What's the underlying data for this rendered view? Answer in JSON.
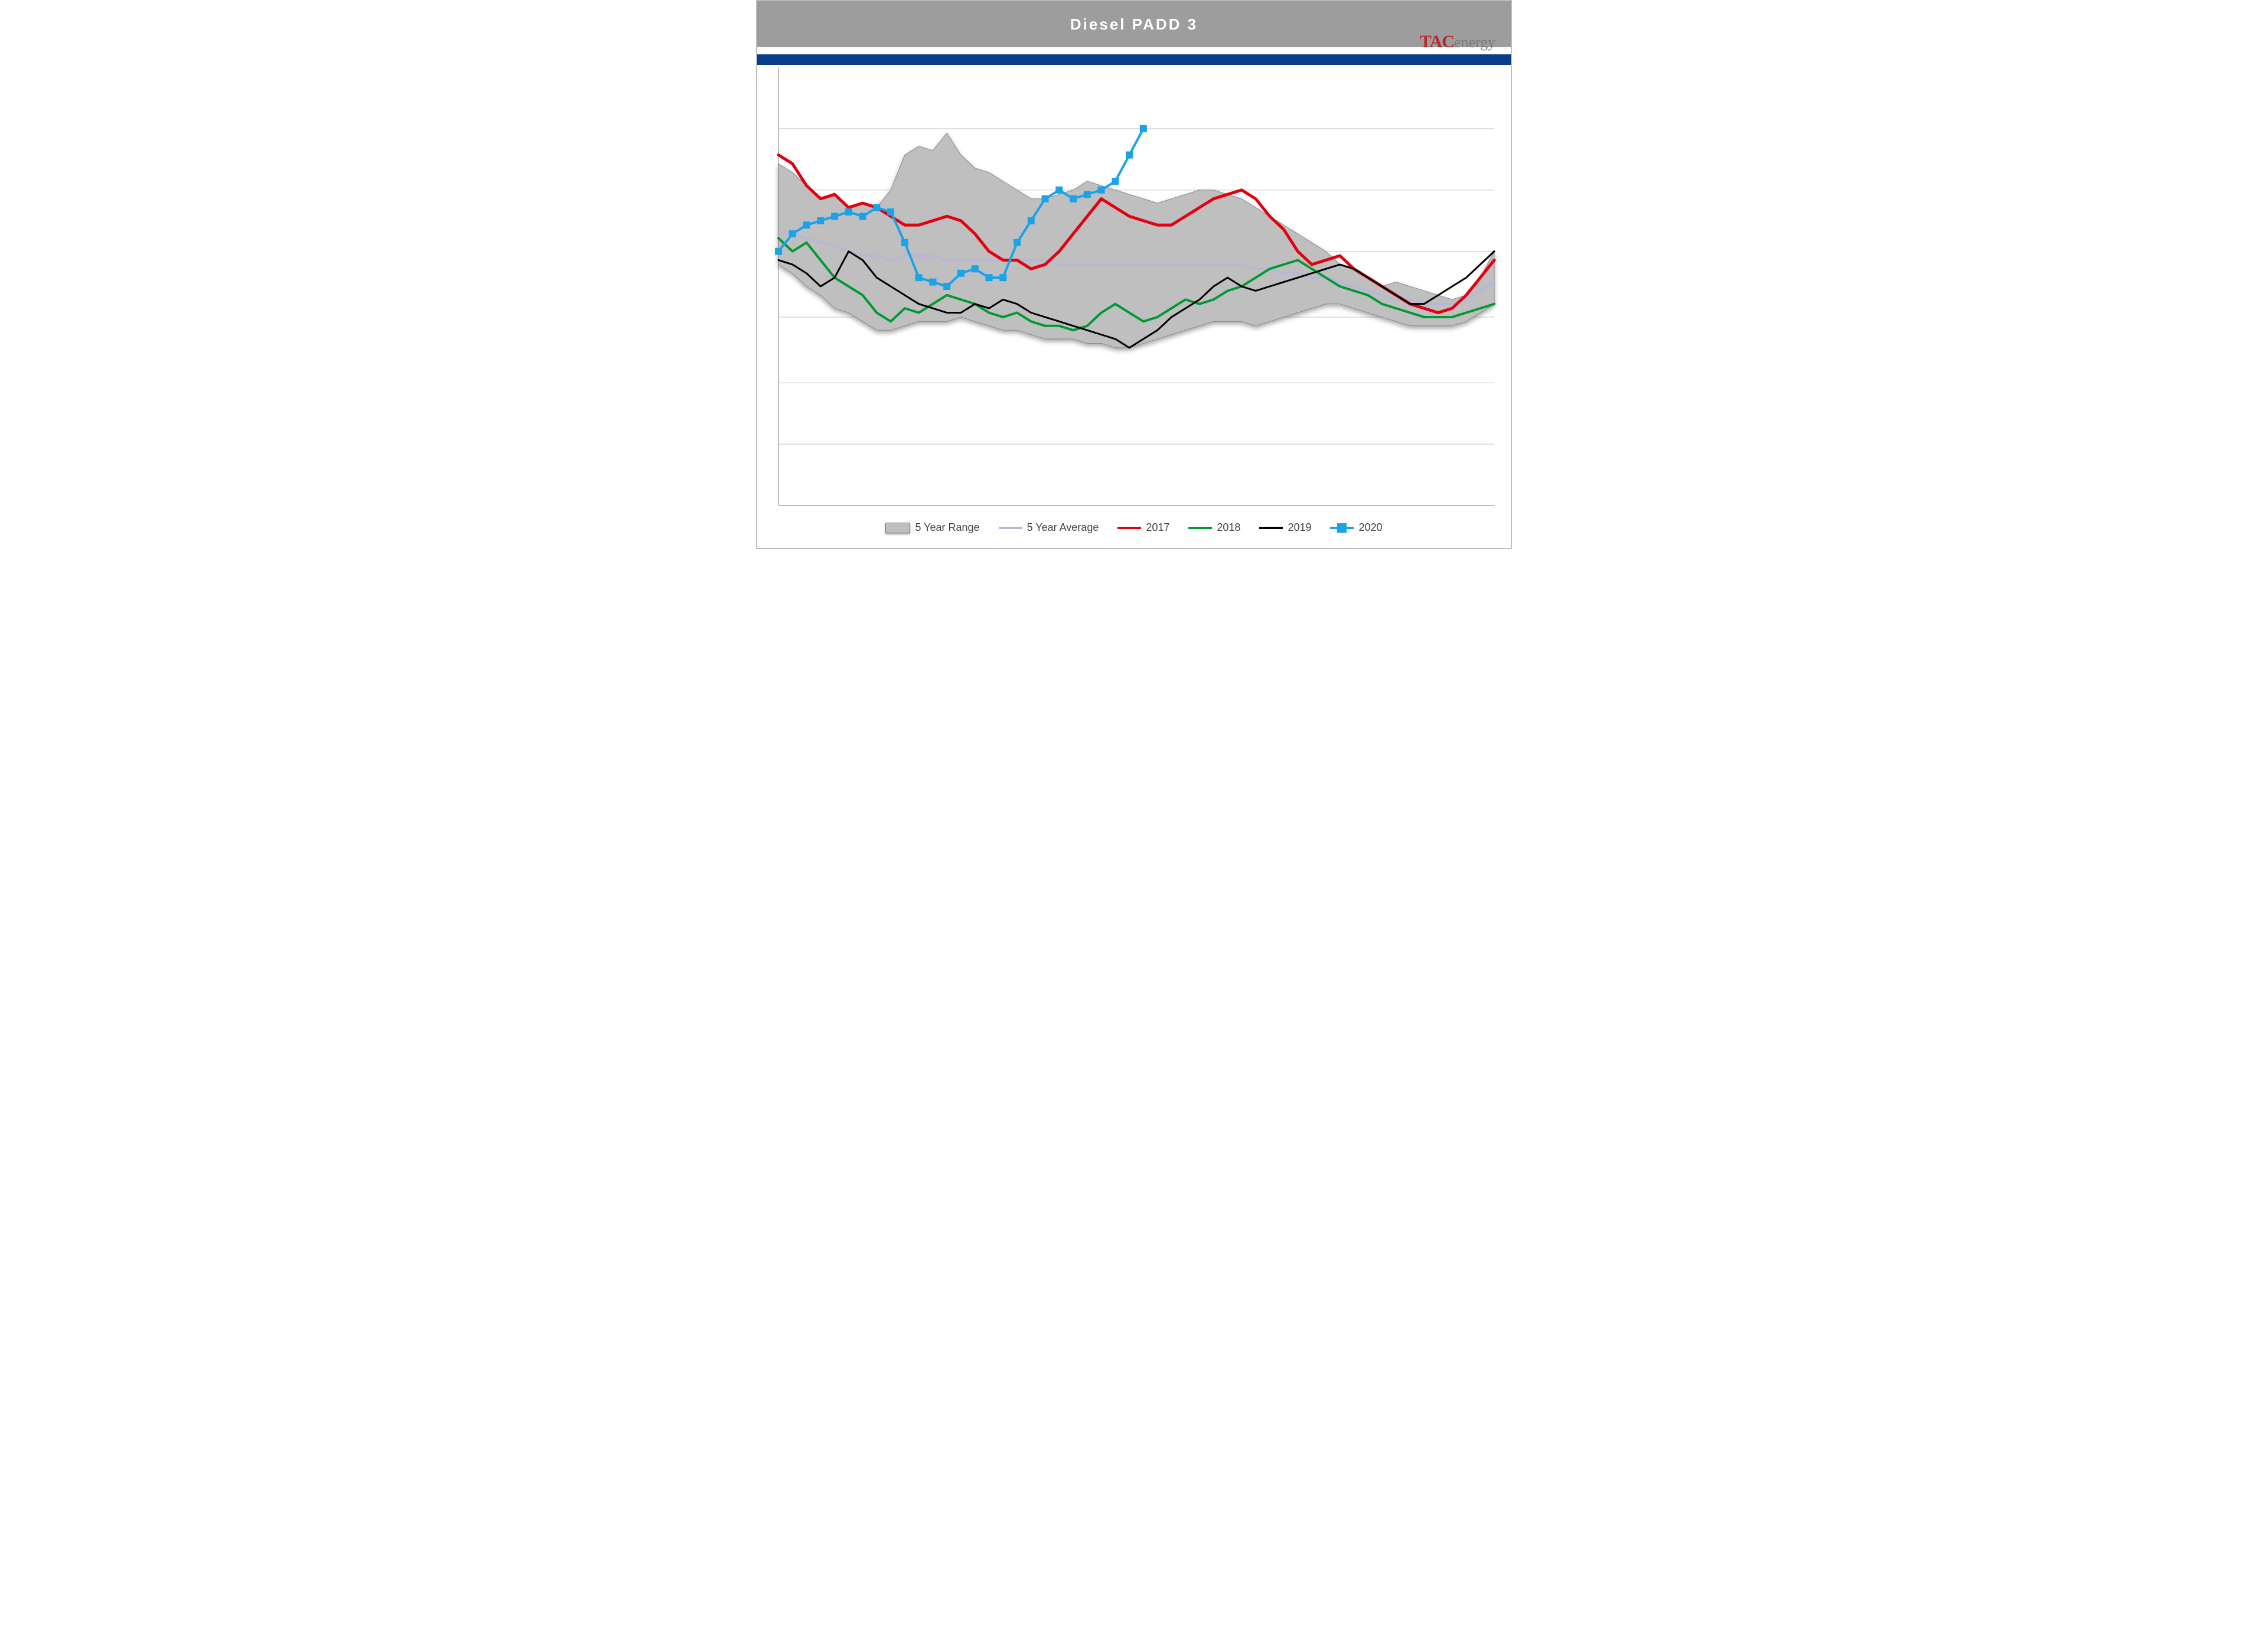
{
  "title": "Diesel  PADD  3",
  "logo": {
    "part1": "TAC",
    "part2": "energy"
  },
  "chart": {
    "type": "line+area",
    "background_color": "#ffffff",
    "grid_color": "#d9d9d9",
    "axis_color": "#000000",
    "x": {
      "count": 52,
      "min": 1,
      "max": 52
    },
    "y": {
      "min": 0,
      "max": 100,
      "gridlines": [
        14,
        28,
        43,
        58,
        72,
        86
      ]
    },
    "range": {
      "label": "5 Year Range",
      "fill": "#bfbfbf",
      "stroke": "#8a8a8a",
      "high": [
        78,
        76,
        73,
        70,
        71,
        68,
        69,
        68,
        72,
        80,
        82,
        81,
        85,
        80,
        77,
        76,
        74,
        72,
        70,
        70,
        71,
        72,
        74,
        73,
        72,
        71,
        70,
        69,
        70,
        71,
        72,
        72,
        71,
        70,
        68,
        66,
        64,
        62,
        60,
        58,
        55,
        54,
        52,
        50,
        51,
        50,
        49,
        48,
        47,
        48,
        52,
        58
      ],
      "low": [
        55,
        53,
        50,
        48,
        45,
        44,
        42,
        40,
        40,
        41,
        42,
        42,
        42,
        43,
        42,
        41,
        40,
        40,
        39,
        38,
        38,
        38,
        37,
        37,
        36,
        36,
        37,
        38,
        39,
        40,
        41,
        42,
        42,
        42,
        41,
        42,
        43,
        44,
        45,
        46,
        46,
        45,
        44,
        43,
        42,
        41,
        41,
        41,
        41,
        42,
        44,
        46
      ]
    },
    "avg": {
      "label": "5 Year Average",
      "color": "#b7b7d8",
      "width": 4,
      "values": [
        62,
        62,
        61,
        60,
        59,
        58,
        57,
        57,
        56,
        57,
        57,
        57,
        56,
        56,
        56,
        56,
        56,
        56,
        56,
        56,
        55,
        55,
        55,
        55,
        55,
        55,
        55,
        55,
        55,
        55,
        55,
        55,
        55,
        55,
        54,
        54,
        53,
        53,
        52,
        52,
        51,
        50,
        49,
        48,
        47,
        47,
        46,
        46,
        46,
        47,
        49,
        51
      ]
    },
    "series": [
      {
        "key": "s2017",
        "label": "2017",
        "color": "#e3000f",
        "width": 5,
        "values": [
          80,
          78,
          73,
          70,
          71,
          68,
          69,
          68,
          66,
          64,
          64,
          65,
          66,
          65,
          62,
          58,
          56,
          56,
          54,
          55,
          58,
          62,
          66,
          70,
          68,
          66,
          65,
          64,
          64,
          66,
          68,
          70,
          71,
          72,
          70,
          66,
          63,
          58,
          55,
          56,
          57,
          54,
          52,
          50,
          48,
          46,
          45,
          44,
          45,
          48,
          52,
          56
        ]
      },
      {
        "key": "s2018",
        "label": "2018",
        "color": "#009933",
        "width": 4,
        "values": [
          61,
          58,
          60,
          56,
          52,
          50,
          48,
          44,
          42,
          45,
          44,
          46,
          48,
          47,
          46,
          44,
          43,
          44,
          42,
          41,
          41,
          40,
          41,
          44,
          46,
          44,
          42,
          43,
          45,
          47,
          46,
          47,
          49,
          50,
          52,
          54,
          55,
          56,
          54,
          52,
          50,
          49,
          48,
          46,
          45,
          44,
          43,
          43,
          43,
          44,
          45,
          46
        ]
      },
      {
        "key": "s2019",
        "label": "2019",
        "color": "#000000",
        "width": 3,
        "values": [
          56,
          55,
          53,
          50,
          52,
          58,
          56,
          52,
          50,
          48,
          46,
          45,
          44,
          44,
          46,
          45,
          47,
          46,
          44,
          43,
          42,
          41,
          40,
          39,
          38,
          36,
          38,
          40,
          43,
          45,
          47,
          50,
          52,
          50,
          49,
          50,
          51,
          52,
          53,
          54,
          55,
          54,
          52,
          50,
          48,
          46,
          46,
          48,
          50,
          52,
          55,
          58
        ]
      },
      {
        "key": "s2020",
        "label": "2020",
        "color": "#1aa3e8",
        "width": 4,
        "marker": "square",
        "values": [
          58,
          62,
          64,
          65,
          66,
          67,
          66,
          68,
          67,
          60,
          52,
          51,
          50,
          53,
          54,
          52,
          52,
          60,
          65,
          70,
          72,
          70,
          71,
          72,
          74,
          80,
          86
        ]
      }
    ],
    "legend": {
      "items": [
        {
          "kind": "range",
          "ref": "range"
        },
        {
          "kind": "line",
          "ref": "avg"
        },
        {
          "kind": "line",
          "ref": "s2017"
        },
        {
          "kind": "line",
          "ref": "s2018"
        },
        {
          "kind": "line",
          "ref": "s2019"
        },
        {
          "kind": "marker",
          "ref": "s2020"
        }
      ]
    }
  }
}
